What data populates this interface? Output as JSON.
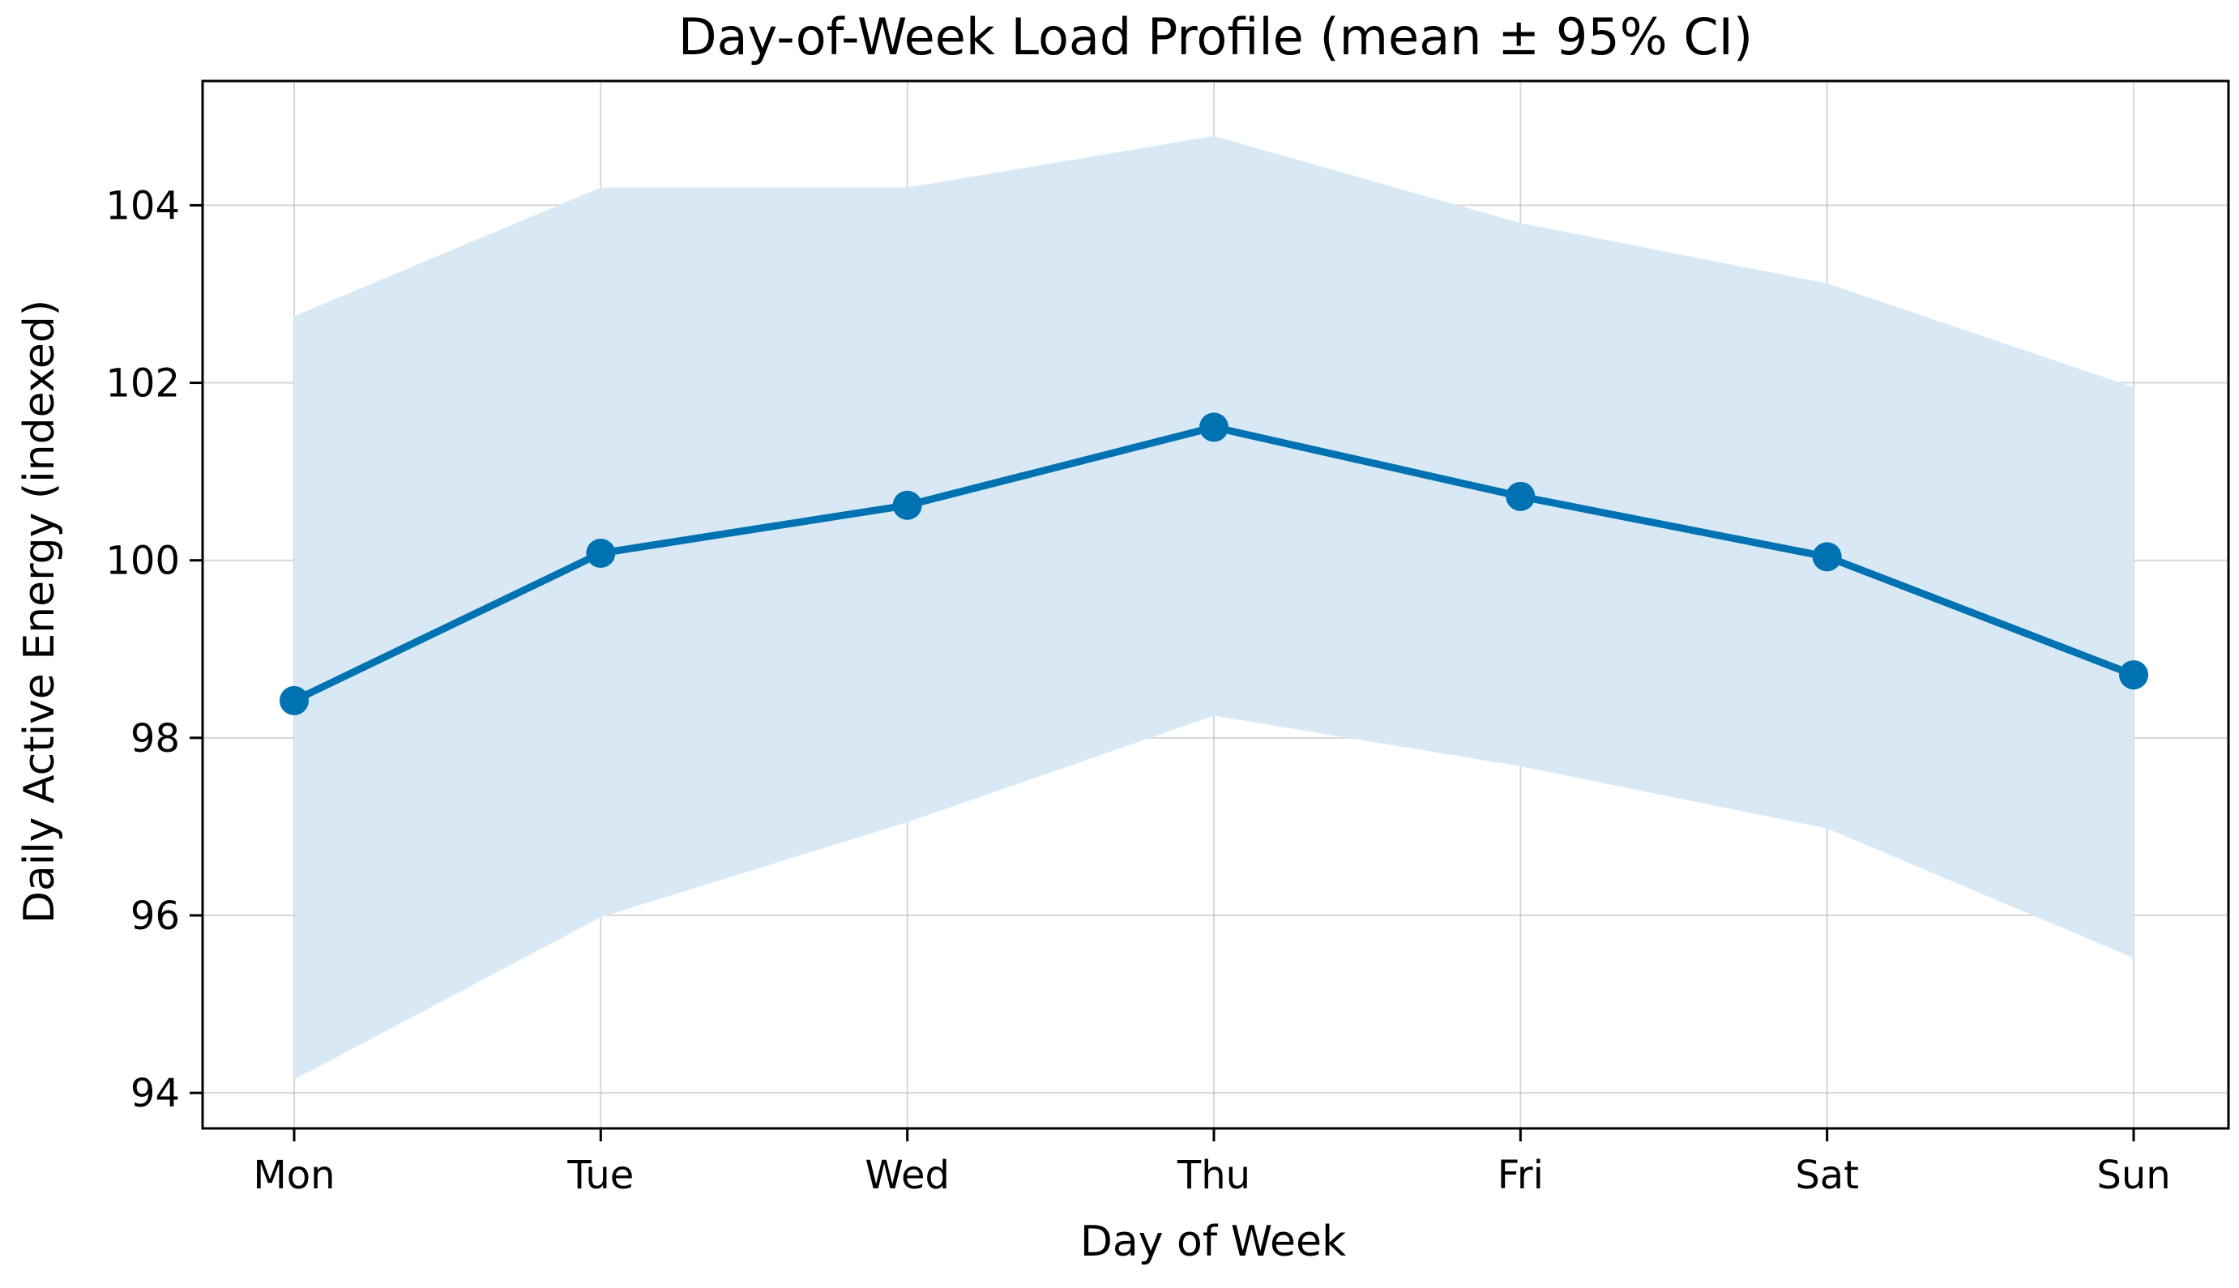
{
  "chart_data": {
    "type": "line",
    "title": "Day-of-Week Load Profile (mean ± 95% CI)",
    "xlabel": "Day of Week",
    "ylabel": "Daily Active Energy (indexed)",
    "categories": [
      "Mon",
      "Tue",
      "Wed",
      "Thu",
      "Fri",
      "Sat",
      "Sun"
    ],
    "series": [
      {
        "name": "mean",
        "values": [
          98.42,
          100.08,
          100.62,
          101.5,
          100.72,
          100.04,
          98.71
        ],
        "ci_lower": [
          94.15,
          95.98,
          97.05,
          98.25,
          97.68,
          96.98,
          95.52
        ],
        "ci_upper": [
          102.75,
          104.2,
          104.2,
          104.78,
          103.8,
          103.12,
          101.95
        ]
      }
    ],
    "ylim": [
      93.6,
      105.4
    ],
    "yticks": [
      94,
      96,
      98,
      100,
      102,
      104
    ],
    "ytick_labels": [
      "94",
      "96",
      "98",
      "100",
      "102",
      "104"
    ],
    "grid": true,
    "colors": {
      "line": "#0072b2",
      "band": "#d8e9f5"
    }
  }
}
